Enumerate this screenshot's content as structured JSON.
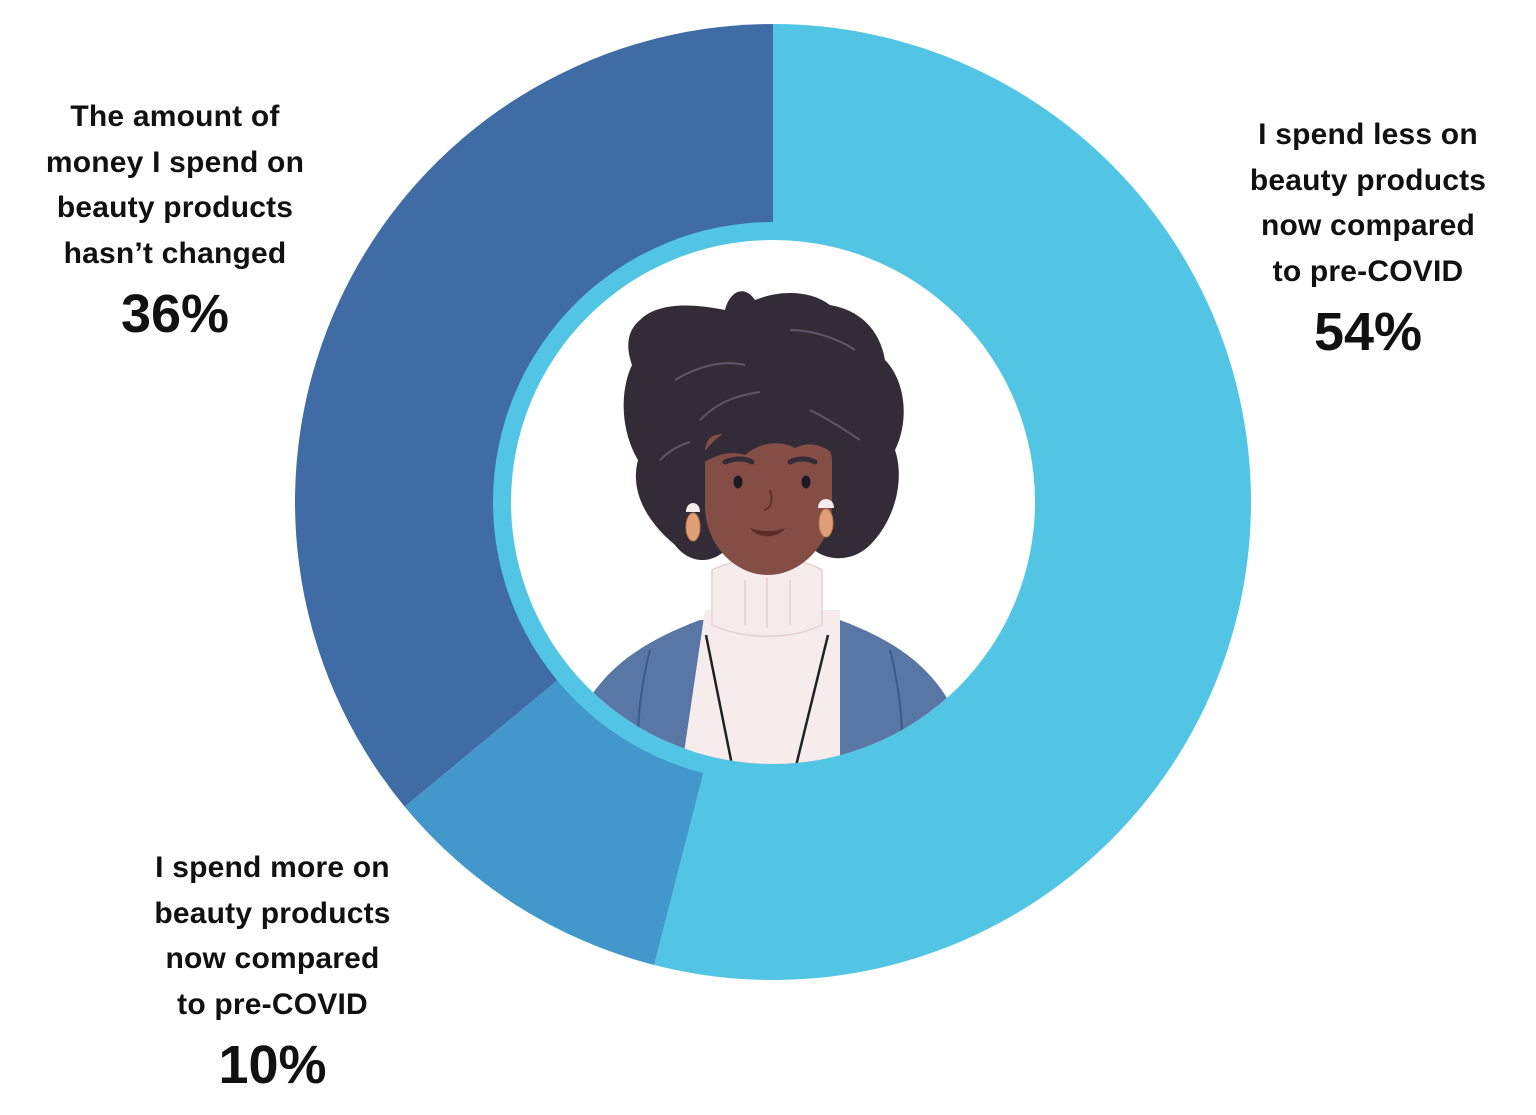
{
  "chart_data": {
    "type": "pie",
    "variant": "donut",
    "title": "",
    "start_angle_deg": 0,
    "direction": "clockwise",
    "categories": [
      "I spend less on beauty products now compared to pre-COVID",
      "I spend more on beauty products now compared to pre-COVID",
      "The amount of money I spend on beauty products hasn't changed"
    ],
    "values": [
      54,
      10,
      36
    ],
    "unit": "%",
    "colors": [
      "#52C5E5",
      "#4298CB",
      "#406CA6"
    ],
    "legend_position": "none (direct labels)",
    "center_image": "illustrated woman avatar"
  },
  "labels": {
    "less": {
      "lines": [
        "I spend less on",
        "beauty products",
        "now compared",
        "to pre-COVID"
      ],
      "value": "54%"
    },
    "more": {
      "lines": [
        "I spend more on",
        "beauty products",
        "now compared",
        "to pre-COVID"
      ],
      "value": "10%"
    },
    "same": {
      "lines": [
        "The amount of",
        "money I spend on",
        "beauty products",
        "hasn’t changed"
      ],
      "value": "36%"
    }
  },
  "colors": {
    "less": "#52C5E5",
    "more": "#4298CB",
    "same": "#406CA6",
    "inner_ring": "#52C5E5",
    "text": "#111111",
    "hair": "#332C37",
    "skin": "#844D45",
    "cardigan": "#5877A5",
    "sweater": "#F6ECEC",
    "earring": "#E0A077"
  }
}
